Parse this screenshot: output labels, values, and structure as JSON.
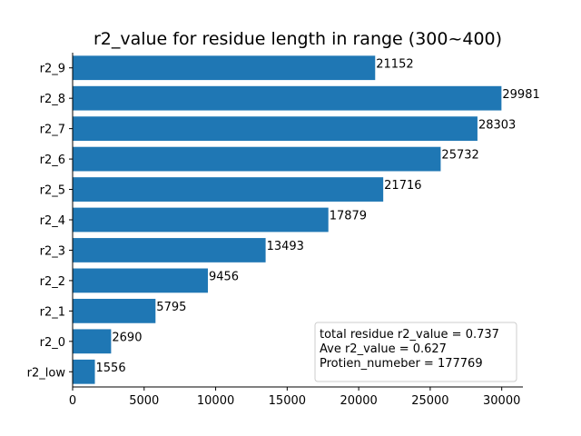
{
  "chart_data": {
    "type": "bar",
    "orientation": "horizontal",
    "title": "r2_value for residue length in range (300~400)",
    "xlabel": "",
    "ylabel": "",
    "categories": [
      "r2_low",
      "r2_0",
      "r2_1",
      "r2_2",
      "r2_3",
      "r2_4",
      "r2_5",
      "r2_6",
      "r2_7",
      "r2_8",
      "r2_9"
    ],
    "values": [
      1556,
      2690,
      5795,
      9456,
      13493,
      17879,
      21716,
      25732,
      28303,
      29981,
      21152
    ],
    "xlim": [
      0,
      31480
    ],
    "xticks": [
      0,
      5000,
      10000,
      15000,
      20000,
      25000,
      30000
    ],
    "bar_color": "#1f77b4",
    "grid": false,
    "annotation_box": {
      "placement": "bottom-right",
      "lines": [
        "total residue r2_value = 0.737",
        "Ave r2_value = 0.627",
        "Protien_numeber = 177769"
      ]
    }
  }
}
